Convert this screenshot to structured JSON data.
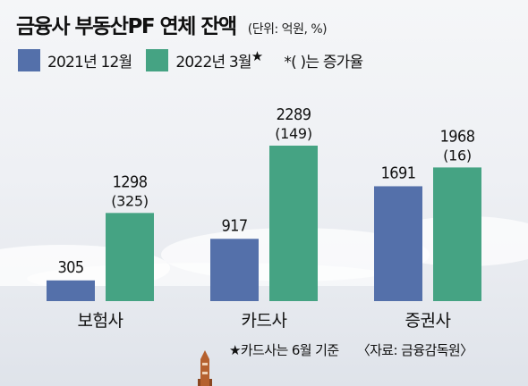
{
  "header": {
    "title": "금융사 부동산PF 연체 잔액",
    "unit": "(단위: 억원, %)"
  },
  "legend": {
    "items": [
      {
        "label": "2021년 12월",
        "color": "#5470aa"
      },
      {
        "label": "2022년 3월",
        "color": "#45a383"
      }
    ],
    "star": "★",
    "note": "*(    )는 증가율"
  },
  "footnote": {
    "text": "★카드사는 6월 기준",
    "source": "〈자료: 금융감독원〉"
  },
  "chart_data": {
    "type": "bar",
    "title": "금융사 부동산PF 연체 잔액",
    "unit": "(단위: 억원, %)",
    "categories": [
      "보험사",
      "카드사",
      "증권사"
    ],
    "series": [
      {
        "name": "2021년 12월",
        "values": [
          305,
          917,
          1691
        ]
      },
      {
        "name": "2022년 3월",
        "values": [
          1298,
          2289,
          1968
        ]
      }
    ],
    "changes": [
      "(325)",
      "(149)",
      "(16)"
    ],
    "ylim": [
      0,
      2400
    ],
    "grid": false,
    "legend_position": "top-left"
  }
}
